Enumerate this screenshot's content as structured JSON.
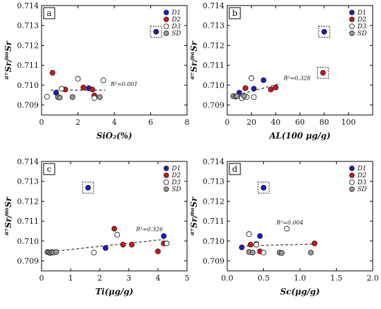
{
  "colors": {
    "D1": "#1a1acc",
    "D2": "#dd1111",
    "D3": "#ffffff",
    "SD": "#9a9a9a"
  },
  "chart_data": [
    {
      "type": "scatter",
      "panel": "a",
      "xlabel": "SiO₂(%)",
      "ylabel": "⁸⁷Sr/⁸⁶Sr",
      "xlim": [
        0,
        8
      ],
      "ylim": [
        0.7085,
        0.714
      ],
      "xticks": [
        0,
        2,
        4,
        6,
        8
      ],
      "yticks": [
        0.709,
        0.71,
        0.711,
        0.712,
        0.713,
        0.714
      ],
      "legend_position": "top-right",
      "r2": "R²=0.001",
      "trend": [
        [
          0.5,
          0.70975
        ],
        [
          3.5,
          0.70975
        ]
      ],
      "highlight": [
        6.3,
        0.71268
      ],
      "series": [
        {
          "name": "D1",
          "points": [
            [
              0.8,
              0.70962
            ],
            [
              2.6,
              0.70985
            ],
            [
              6.3,
              0.71268
            ]
          ]
        },
        {
          "name": "D2",
          "points": [
            [
              0.6,
              0.71062
            ],
            [
              1.3,
              0.70978
            ],
            [
              2.3,
              0.70988
            ],
            [
              2.8,
              0.70978
            ],
            [
              2.9,
              0.70948
            ]
          ]
        },
        {
          "name": "D3",
          "points": [
            [
              1.1,
              0.70982
            ],
            [
              2.0,
              0.71032
            ],
            [
              2.9,
              0.70935
            ],
            [
              3.4,
              0.71024
            ],
            [
              0.3,
              0.70942
            ]
          ]
        },
        {
          "name": "SD",
          "points": [
            [
              0.9,
              0.7094
            ],
            [
              1.0,
              0.70938
            ],
            [
              1.7,
              0.7094
            ],
            [
              3.2,
              0.7094
            ]
          ]
        }
      ]
    },
    {
      "type": "scatter",
      "panel": "b",
      "xlabel": "AL(100 μg/g)",
      "ylabel": "⁸⁷Sr/⁸⁶Sr",
      "xlim": [
        0,
        120
      ],
      "ylim": [
        0.7085,
        0.714
      ],
      "xticks": [
        0,
        20,
        40,
        60,
        80,
        100
      ],
      "yticks": [
        0.709,
        0.71,
        0.711,
        0.712,
        0.713,
        0.714
      ],
      "legend_position": "top-right",
      "r2": "R²=0.328",
      "trend": [
        [
          5,
          0.70945
        ],
        [
          42,
          0.71005
        ]
      ],
      "highlight": [
        80,
        0.71268
      ],
      "highlight2": [
        79,
        0.71062
      ],
      "series": [
        {
          "name": "D1",
          "points": [
            [
              10,
              0.70962
            ],
            [
              22,
              0.70982
            ],
            [
              30,
              0.71025
            ],
            [
              80,
              0.71268
            ]
          ]
        },
        {
          "name": "D2",
          "points": [
            [
              15,
              0.70985
            ],
            [
              36,
              0.70978
            ],
            [
              40,
              0.70988
            ],
            [
              79,
              0.71062
            ]
          ]
        },
        {
          "name": "D3",
          "points": [
            [
              12,
              0.70935
            ],
            [
              16,
              0.7094
            ],
            [
              20,
              0.71035
            ],
            [
              22,
              0.7094
            ]
          ]
        },
        {
          "name": "SD",
          "points": [
            [
              5,
              0.70945
            ],
            [
              7,
              0.70942
            ],
            [
              8,
              0.70945
            ],
            [
              14,
              0.70945
            ]
          ]
        }
      ]
    },
    {
      "type": "scatter",
      "panel": "c",
      "xlabel": "Ti(μg/g)",
      "ylabel": "⁸⁷Sr/⁸⁶Sr",
      "xlim": [
        0,
        5
      ],
      "ylim": [
        0.7085,
        0.714
      ],
      "xticks": [
        0,
        1,
        2,
        3,
        4,
        5
      ],
      "yticks": [
        0.709,
        0.71,
        0.711,
        0.712,
        0.713,
        0.714
      ],
      "legend_position": "top-right",
      "r2": "R²=0.326",
      "trend": [
        [
          0.2,
          0.70945
        ],
        [
          4.2,
          0.71008
        ]
      ],
      "highlight": [
        1.6,
        0.71268
      ],
      "series": [
        {
          "name": "D1",
          "points": [
            [
              1.6,
              0.71268
            ],
            [
              2.2,
              0.70965
            ],
            [
              4.2,
              0.71025
            ]
          ]
        },
        {
          "name": "D2",
          "points": [
            [
              2.5,
              0.71062
            ],
            [
              2.8,
              0.70982
            ],
            [
              3.1,
              0.70982
            ],
            [
              4.0,
              0.70948
            ],
            [
              4.2,
              0.70988
            ]
          ]
        },
        {
          "name": "D3",
          "points": [
            [
              1.8,
              0.70942
            ],
            [
              2.6,
              0.71032
            ],
            [
              4.3,
              0.70988
            ]
          ]
        },
        {
          "name": "SD",
          "points": [
            [
              0.2,
              0.70945
            ],
            [
              0.25,
              0.70942
            ],
            [
              0.3,
              0.7094
            ],
            [
              0.35,
              0.70945
            ],
            [
              0.4,
              0.70942
            ],
            [
              0.5,
              0.70945
            ]
          ]
        }
      ]
    },
    {
      "type": "scatter",
      "panel": "d",
      "xlabel": "Sc(μg/g)",
      "ylabel": "⁸⁷Sr/⁸⁶Sr",
      "xlim": [
        0,
        2
      ],
      "ylim": [
        0.7085,
        0.714
      ],
      "xticks": [
        "0.0",
        "0.5",
        "1.0",
        "1.5",
        "2.0"
      ],
      "yticks": [
        0.709,
        0.71,
        0.711,
        0.712,
        0.713,
        0.714
      ],
      "legend_position": "top-right",
      "r2": "R²=0.004",
      "trend": [
        [
          0.2,
          0.70975
        ],
        [
          1.2,
          0.70985
        ]
      ],
      "highlight": [
        0.5,
        0.71268
      ],
      "series": [
        {
          "name": "D1",
          "points": [
            [
              0.5,
              0.71268
            ],
            [
              0.2,
              0.70968
            ],
            [
              0.45,
              0.71025
            ]
          ]
        },
        {
          "name": "D2",
          "points": [
            [
              0.32,
              0.70982
            ],
            [
              0.4,
              0.70985
            ],
            [
              0.45,
              0.70948
            ],
            [
              1.2,
              0.70988
            ]
          ]
        },
        {
          "name": "D3",
          "points": [
            [
              0.3,
              0.71035
            ],
            [
              0.5,
              0.70942
            ],
            [
              0.82,
              0.71062
            ],
            [
              0.4,
              0.70982
            ]
          ]
        },
        {
          "name": "SD",
          "points": [
            [
              0.3,
              0.70945
            ],
            [
              0.35,
              0.70942
            ],
            [
              0.72,
              0.70942
            ],
            [
              0.75,
              0.7094
            ],
            [
              1.15,
              0.70942
            ]
          ]
        }
      ]
    }
  ]
}
